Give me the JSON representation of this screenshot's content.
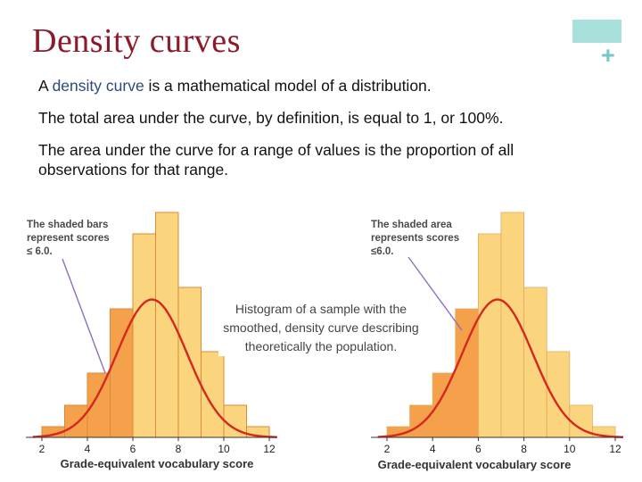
{
  "slide": {
    "title": "Density curves",
    "plus": "+",
    "p1_pre": "A ",
    "p1_highlight": "density curve",
    "p1_post": " is a mathematical model of a distribution.",
    "p2": "The total area under the curve, by definition, is equal to 1, or 100%.",
    "p3": "The area under the curve for a range of values is the proportion of all observations for that range.",
    "caption": "Histogram of a sample with the smoothed, density curve describing theoretically the population.",
    "colors": {
      "title": "#8b1a2b",
      "accent": "#a8e0dc",
      "plus": "#74c8c2",
      "highlight": "#2b4a7a"
    }
  },
  "chart_data": [
    {
      "type": "bar",
      "annotation": [
        "The shaded bars",
        "represent scores",
        "≤ 6.0."
      ],
      "xlabel": "Grade-equivalent vocabulary score",
      "x_ticks": [
        2,
        4,
        6,
        8,
        10,
        12
      ],
      "bin_width": 1,
      "bins_start": [
        2,
        3,
        4,
        5,
        6,
        7,
        8,
        9,
        10,
        11
      ],
      "values": [
        0.02,
        0.06,
        0.12,
        0.24,
        0.38,
        0.42,
        0.28,
        0.16,
        0.06,
        0.02
      ],
      "shaded_max": 6.0,
      "curve": {
        "type": "normal",
        "mean": 6.84,
        "sd": 1.55
      },
      "colors": {
        "shaded": "#f5a04a",
        "unshaded": "#fbd57e",
        "curve": "#d4281f"
      }
    },
    {
      "type": "area",
      "annotation": [
        "The shaded area",
        "represents scores",
        "≤6.0."
      ],
      "xlabel": "Grade-equivalent vocabulary score",
      "x_ticks": [
        2,
        4,
        6,
        8,
        10,
        12
      ],
      "bin_width": 1,
      "bins_start": [
        2,
        3,
        4,
        5,
        6,
        7,
        8,
        9,
        10,
        11
      ],
      "values": [
        0.02,
        0.06,
        0.12,
        0.24,
        0.38,
        0.42,
        0.28,
        0.16,
        0.06,
        0.02
      ],
      "shaded_max": 6.0,
      "curve": {
        "type": "normal",
        "mean": 6.84,
        "sd": 1.55
      },
      "colors": {
        "shaded": "#f5a04a",
        "unshaded": "#fbd57e",
        "curve": "#d4281f"
      }
    }
  ]
}
